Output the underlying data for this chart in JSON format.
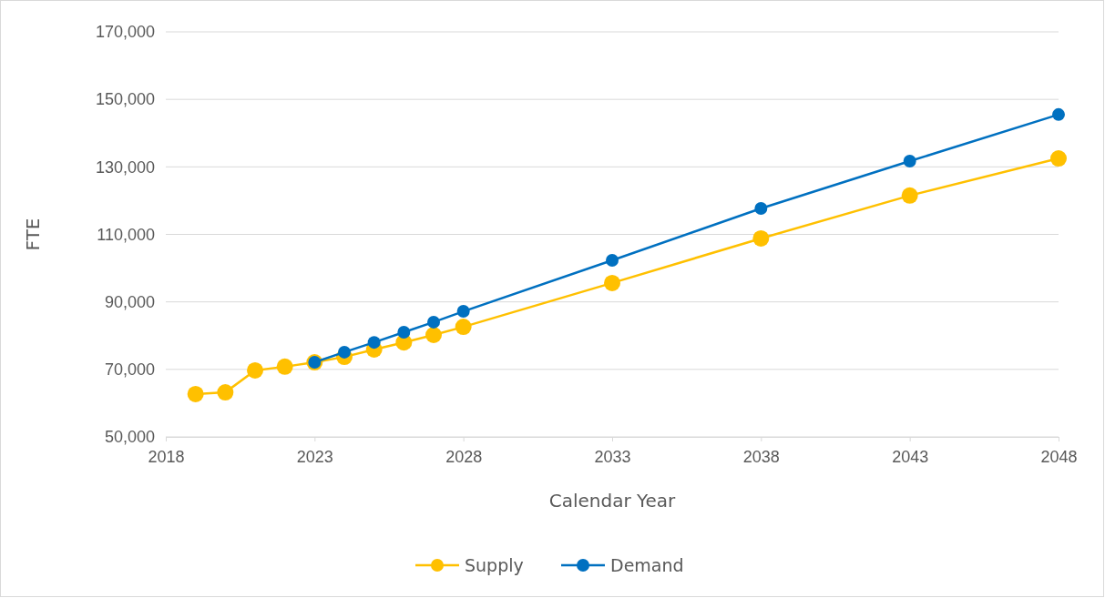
{
  "chart_data": {
    "type": "line",
    "xlabel": "Calendar Year",
    "ylabel": "FTE",
    "xlim": [
      2018,
      2048
    ],
    "xticks": [
      2018,
      2023,
      2028,
      2033,
      2038,
      2043,
      2048
    ],
    "ylim": [
      50000,
      170000
    ],
    "yticks": [
      {
        "value": 50000,
        "label": "50,000"
      },
      {
        "value": 70000,
        "label": "70,000"
      },
      {
        "value": 90000,
        "label": "90,000"
      },
      {
        "value": 110000,
        "label": "110,000"
      },
      {
        "value": 130000,
        "label": "130,000"
      },
      {
        "value": 150000,
        "label": "150,000"
      },
      {
        "value": 170000,
        "label": "170,000"
      }
    ],
    "grid": "y",
    "legend": "bottom",
    "marker": "circle",
    "line_style": "solid",
    "series": [
      {
        "name": "Supply",
        "color": "#ffc000",
        "x": [
          2019,
          2020,
          2021,
          2022,
          2023,
          2024,
          2025,
          2026,
          2027,
          2028,
          2033,
          2038,
          2043,
          2048
        ],
        "values": [
          62700,
          63200,
          69700,
          70800,
          72100,
          73700,
          75900,
          78000,
          80200,
          82600,
          95600,
          108800,
          121500,
          132500
        ]
      },
      {
        "name": "Demand",
        "color": "#0070c0",
        "x": [
          2023,
          2024,
          2025,
          2026,
          2027,
          2028,
          2033,
          2038,
          2043,
          2048
        ],
        "values": [
          72100,
          75100,
          78000,
          81000,
          84000,
          87200,
          102300,
          117700,
          131700,
          145500
        ]
      }
    ]
  }
}
